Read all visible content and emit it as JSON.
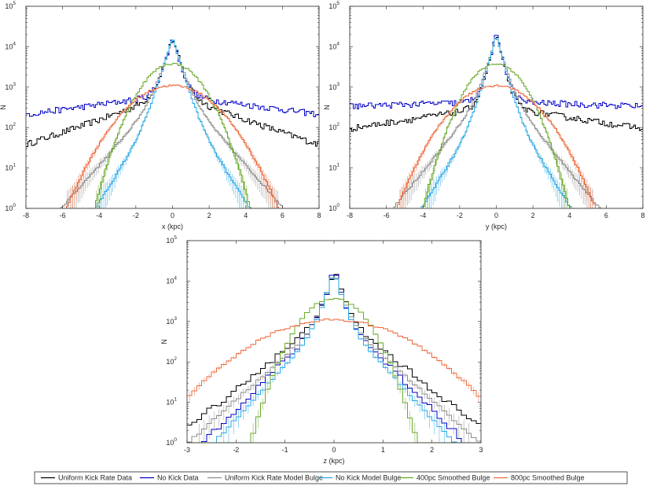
{
  "chart_data": [
    {
      "type": "histogram",
      "id": "x",
      "xlabel": "x (kpc)",
      "ylabel": "N",
      "xlim": [
        -8,
        8
      ],
      "ylim": [
        1,
        100000
      ],
      "yscale": "log",
      "xticks": [
        "-8",
        "-6",
        "-4",
        "-2",
        "0",
        "2",
        "4",
        "6",
        "8"
      ],
      "yticks": [
        {
          "base": "10",
          "exp": "0"
        },
        {
          "base": "10",
          "exp": "1"
        },
        {
          "base": "10",
          "exp": "2"
        },
        {
          "base": "10",
          "exp": "3"
        },
        {
          "base": "10",
          "exp": "4"
        },
        {
          "base": "10",
          "exp": "5"
        }
      ],
      "binwidth": 0.1,
      "series": [
        {
          "name": "Uniform Kick Rate Data",
          "peak": 16000,
          "width": 0.28,
          "tail_amp": 700,
          "tail_scale": 2.6,
          "floor": 8
        },
        {
          "name": "No Kick Data",
          "peak": 17000,
          "width": 0.26,
          "tail_amp": 620,
          "tail_scale": 6.5,
          "floor": 40
        },
        {
          "name": "Uniform Kick Rate Model Bulge",
          "peak": 14000,
          "width": 0.3,
          "tail_amp": 1300,
          "tail_scale": 0.85,
          "floor": 0
        },
        {
          "name": "No Kick Model Bulge",
          "peak": 16000,
          "width": 0.28,
          "tail_amp": 900,
          "tail_scale": 0.62,
          "floor": 0
        },
        {
          "name": "400pc Smoothed Bulge",
          "peak": 3800,
          "width": 1.05,
          "tail_amp": 0,
          "tail_scale": 1,
          "floor": 0
        },
        {
          "name": "800pc Smoothed Bulge",
          "peak": 1100,
          "width": 1.55,
          "tail_amp": 0,
          "tail_scale": 1,
          "floor": 0
        }
      ]
    },
    {
      "type": "histogram",
      "id": "y",
      "xlabel": "y (kpc)",
      "ylabel": "N",
      "xlim": [
        -8,
        8
      ],
      "ylim": [
        1,
        100000
      ],
      "yscale": "log",
      "xticks": [
        "-8",
        "-6",
        "-4",
        "-2",
        "0",
        "2",
        "4",
        "6",
        "8"
      ],
      "yticks": [
        {
          "base": "10",
          "exp": "0"
        },
        {
          "base": "10",
          "exp": "1"
        },
        {
          "base": "10",
          "exp": "2"
        },
        {
          "base": "10",
          "exp": "3"
        },
        {
          "base": "10",
          "exp": "4"
        },
        {
          "base": "10",
          "exp": "5"
        }
      ],
      "binwidth": 0.1,
      "series": [
        {
          "name": "Uniform Kick Rate Data",
          "peak": 19000,
          "width": 0.24,
          "tail_amp": 330,
          "tail_scale": 6.0,
          "floor": 10
        },
        {
          "name": "No Kick Data",
          "peak": 20000,
          "width": 0.24,
          "tail_amp": 380,
          "tail_scale": 30,
          "floor": 60
        },
        {
          "name": "Uniform Kick Rate Model Bulge",
          "peak": 17000,
          "width": 0.27,
          "tail_amp": 1400,
          "tail_scale": 0.78,
          "floor": 0
        },
        {
          "name": "No Kick Model Bulge",
          "peak": 18000,
          "width": 0.25,
          "tail_amp": 900,
          "tail_scale": 0.6,
          "floor": 0
        },
        {
          "name": "400pc Smoothed Bulge",
          "peak": 3800,
          "width": 0.98,
          "tail_amp": 0,
          "tail_scale": 1,
          "floor": 0
        },
        {
          "name": "800pc Smoothed Bulge",
          "peak": 1100,
          "width": 1.45,
          "tail_amp": 0,
          "tail_scale": 1,
          "floor": 0
        }
      ]
    },
    {
      "type": "histogram",
      "id": "z",
      "xlabel": "z (kpc)",
      "ylabel": "N",
      "xlim": [
        -3,
        3
      ],
      "ylim": [
        1,
        100000
      ],
      "yscale": "log",
      "xticks": [
        "-3",
        "-2",
        "-1",
        "0",
        "1",
        "2",
        "3"
      ],
      "yticks": [
        {
          "base": "10",
          "exp": "0"
        },
        {
          "base": "10",
          "exp": "1"
        },
        {
          "base": "10",
          "exp": "2"
        },
        {
          "base": "10",
          "exp": "3"
        },
        {
          "base": "10",
          "exp": "4"
        },
        {
          "base": "10",
          "exp": "5"
        }
      ],
      "binwidth": 0.1,
      "series": [
        {
          "name": "Uniform Kick Rate Data",
          "peak": 17000,
          "width": 0.11,
          "tail_amp": 1800,
          "tail_scale": 0.45,
          "floor": 0
        },
        {
          "name": "No Kick Data",
          "peak": 19000,
          "width": 0.1,
          "tail_amp": 1800,
          "tail_scale": 0.36,
          "floor": 0
        },
        {
          "name": "Uniform Kick Rate Model Bulge",
          "peak": 15000,
          "width": 0.11,
          "tail_amp": 1700,
          "tail_scale": 0.4,
          "floor": 0
        },
        {
          "name": "No Kick Model Bulge",
          "peak": 17000,
          "width": 0.1,
          "tail_amp": 1700,
          "tail_scale": 0.33,
          "floor": 0
        },
        {
          "name": "400pc Smoothed Bulge",
          "peak": 3800,
          "width": 0.42,
          "tail_amp": 0,
          "tail_scale": 1,
          "floor": 0
        },
        {
          "name": "800pc Smoothed Bulge",
          "peak": 1100,
          "width": 1.0,
          "tail_amp": 0,
          "tail_scale": 1,
          "floor": 0
        }
      ]
    }
  ],
  "legend": {
    "position": "bottom",
    "items": [
      {
        "label": "Uniform Kick Rate Data",
        "color": "#000000"
      },
      {
        "label": "No Kick Data",
        "color": "#0000c8"
      },
      {
        "label": "Uniform Kick Rate Model Bulge",
        "color": "#8c8c8c"
      },
      {
        "label": "No Kick Model Bulge",
        "color": "#2aa8e6"
      },
      {
        "label": "400pc Smoothed Bulge",
        "color": "#6aa82a"
      },
      {
        "label": "800pc Smoothed Bulge",
        "color": "#ee6a3c"
      }
    ]
  }
}
